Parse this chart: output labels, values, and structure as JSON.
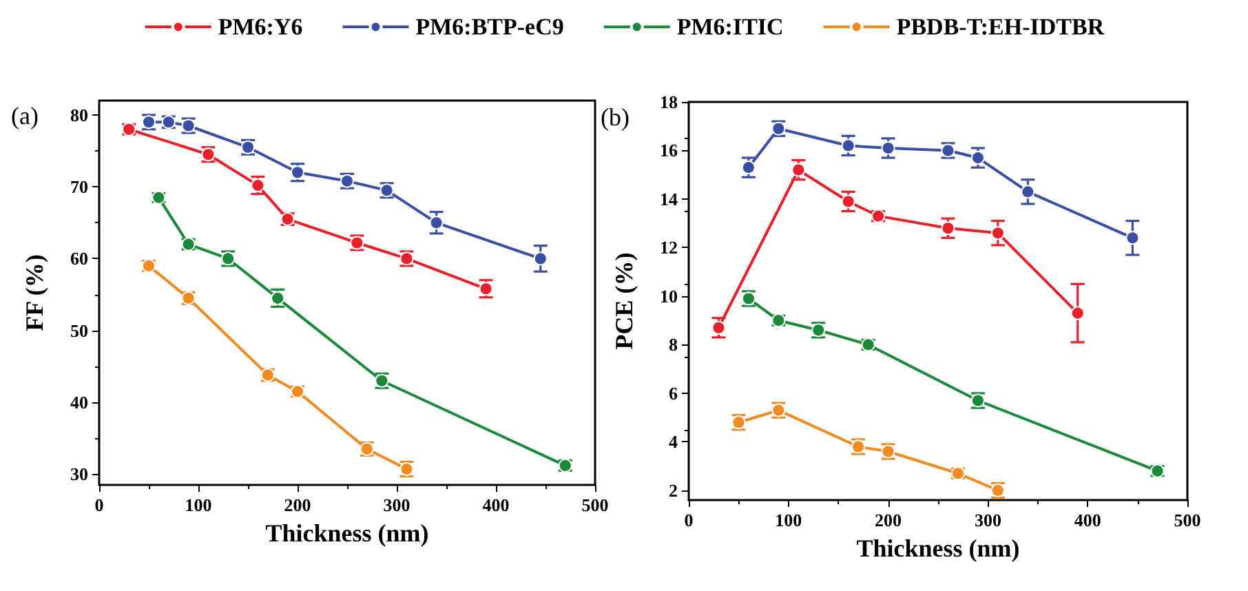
{
  "chart_data": [
    {
      "type": "line",
      "xlabel": "Thickness (nm)",
      "ylabel": "FF (%)",
      "annotations": [
        "(a)"
      ],
      "xlim": [
        0,
        500
      ],
      "xticks": [
        0,
        100,
        200,
        300,
        400,
        500
      ],
      "ylim": [
        28.5,
        82
      ],
      "yticks": [
        30,
        40,
        50,
        60,
        70,
        80
      ],
      "legend": "top",
      "marker": "circle",
      "grid": false,
      "series": [
        {
          "name": "PM6:Y6",
          "color": "#e8202a",
          "x": [
            30,
            110,
            160,
            190,
            260,
            310,
            390
          ],
          "values": [
            78,
            74.5,
            70.2,
            65.5,
            62.2,
            60,
            55.8
          ],
          "errors": [
            0.7,
            1,
            1.2,
            0.8,
            1,
            1,
            1.2
          ]
        },
        {
          "name": "PM6:BTP-eC9",
          "color": "#3a4ea4",
          "x": [
            50,
            70,
            90,
            150,
            200,
            250,
            290,
            340,
            445
          ],
          "values": [
            79,
            79,
            78.5,
            75.5,
            72,
            70.8,
            69.5,
            65,
            60
          ],
          "errors": [
            1,
            0.8,
            1,
            1,
            1.2,
            1,
            1,
            1.5,
            1.8
          ]
        },
        {
          "name": "PM6:ITIC",
          "color": "#1a8a3a",
          "x": [
            60,
            90,
            130,
            180,
            285,
            470
          ],
          "values": [
            68.5,
            62,
            60,
            54.5,
            43,
            31.2
          ],
          "errors": [
            0.6,
            0.7,
            1,
            1.2,
            1,
            0.7
          ]
        },
        {
          "name": "PBDB-T:EH-IDTBR",
          "color": "#f28a22",
          "x": [
            50,
            90,
            170,
            200,
            270,
            310
          ],
          "values": [
            59,
            54.5,
            43.8,
            41.5,
            33.5,
            30.7
          ],
          "errors": [
            0.7,
            0.8,
            0.8,
            0.7,
            0.9,
            1
          ]
        }
      ]
    },
    {
      "type": "line",
      "xlabel": "Thickness (nm)",
      "ylabel": "PCE (%)",
      "annotations": [
        "(b)"
      ],
      "xlim": [
        0,
        500
      ],
      "xticks": [
        0,
        100,
        200,
        300,
        400,
        500
      ],
      "ylim": [
        1.6,
        18
      ],
      "yticks": [
        2,
        4,
        6,
        8,
        10,
        12,
        14,
        16,
        18
      ],
      "legend": "top",
      "marker": "circle",
      "grid": false,
      "series": [
        {
          "name": "PM6:Y6",
          "color": "#e8202a",
          "x": [
            30,
            110,
            160,
            190,
            260,
            310,
            390
          ],
          "values": [
            8.7,
            15.2,
            13.9,
            13.3,
            12.8,
            12.6,
            9.3
          ],
          "errors": [
            0.4,
            0.4,
            0.4,
            0.2,
            0.4,
            0.5,
            1.2
          ]
        },
        {
          "name": "PM6:BTP-eC9",
          "color": "#3a4ea4",
          "x": [
            60,
            90,
            160,
            200,
            260,
            290,
            340,
            445
          ],
          "values": [
            15.3,
            16.9,
            16.2,
            16.1,
            16.0,
            15.7,
            14.3,
            12.4
          ],
          "errors": [
            0.4,
            0.3,
            0.4,
            0.4,
            0.3,
            0.4,
            0.5,
            0.7
          ]
        },
        {
          "name": "PM6:ITIC",
          "color": "#1a8a3a",
          "x": [
            60,
            90,
            130,
            180,
            290,
            470
          ],
          "values": [
            9.9,
            9.0,
            8.6,
            8.0,
            5.7,
            2.8
          ],
          "errors": [
            0.3,
            0.2,
            0.3,
            0.2,
            0.3,
            0.2
          ]
        },
        {
          "name": "PBDB-T:EH-IDTBR",
          "color": "#f28a22",
          "x": [
            50,
            90,
            170,
            200,
            270,
            310
          ],
          "values": [
            4.8,
            5.3,
            3.8,
            3.6,
            2.7,
            2.0
          ],
          "errors": [
            0.3,
            0.3,
            0.3,
            0.3,
            0.2,
            0.3
          ]
        }
      ]
    }
  ]
}
